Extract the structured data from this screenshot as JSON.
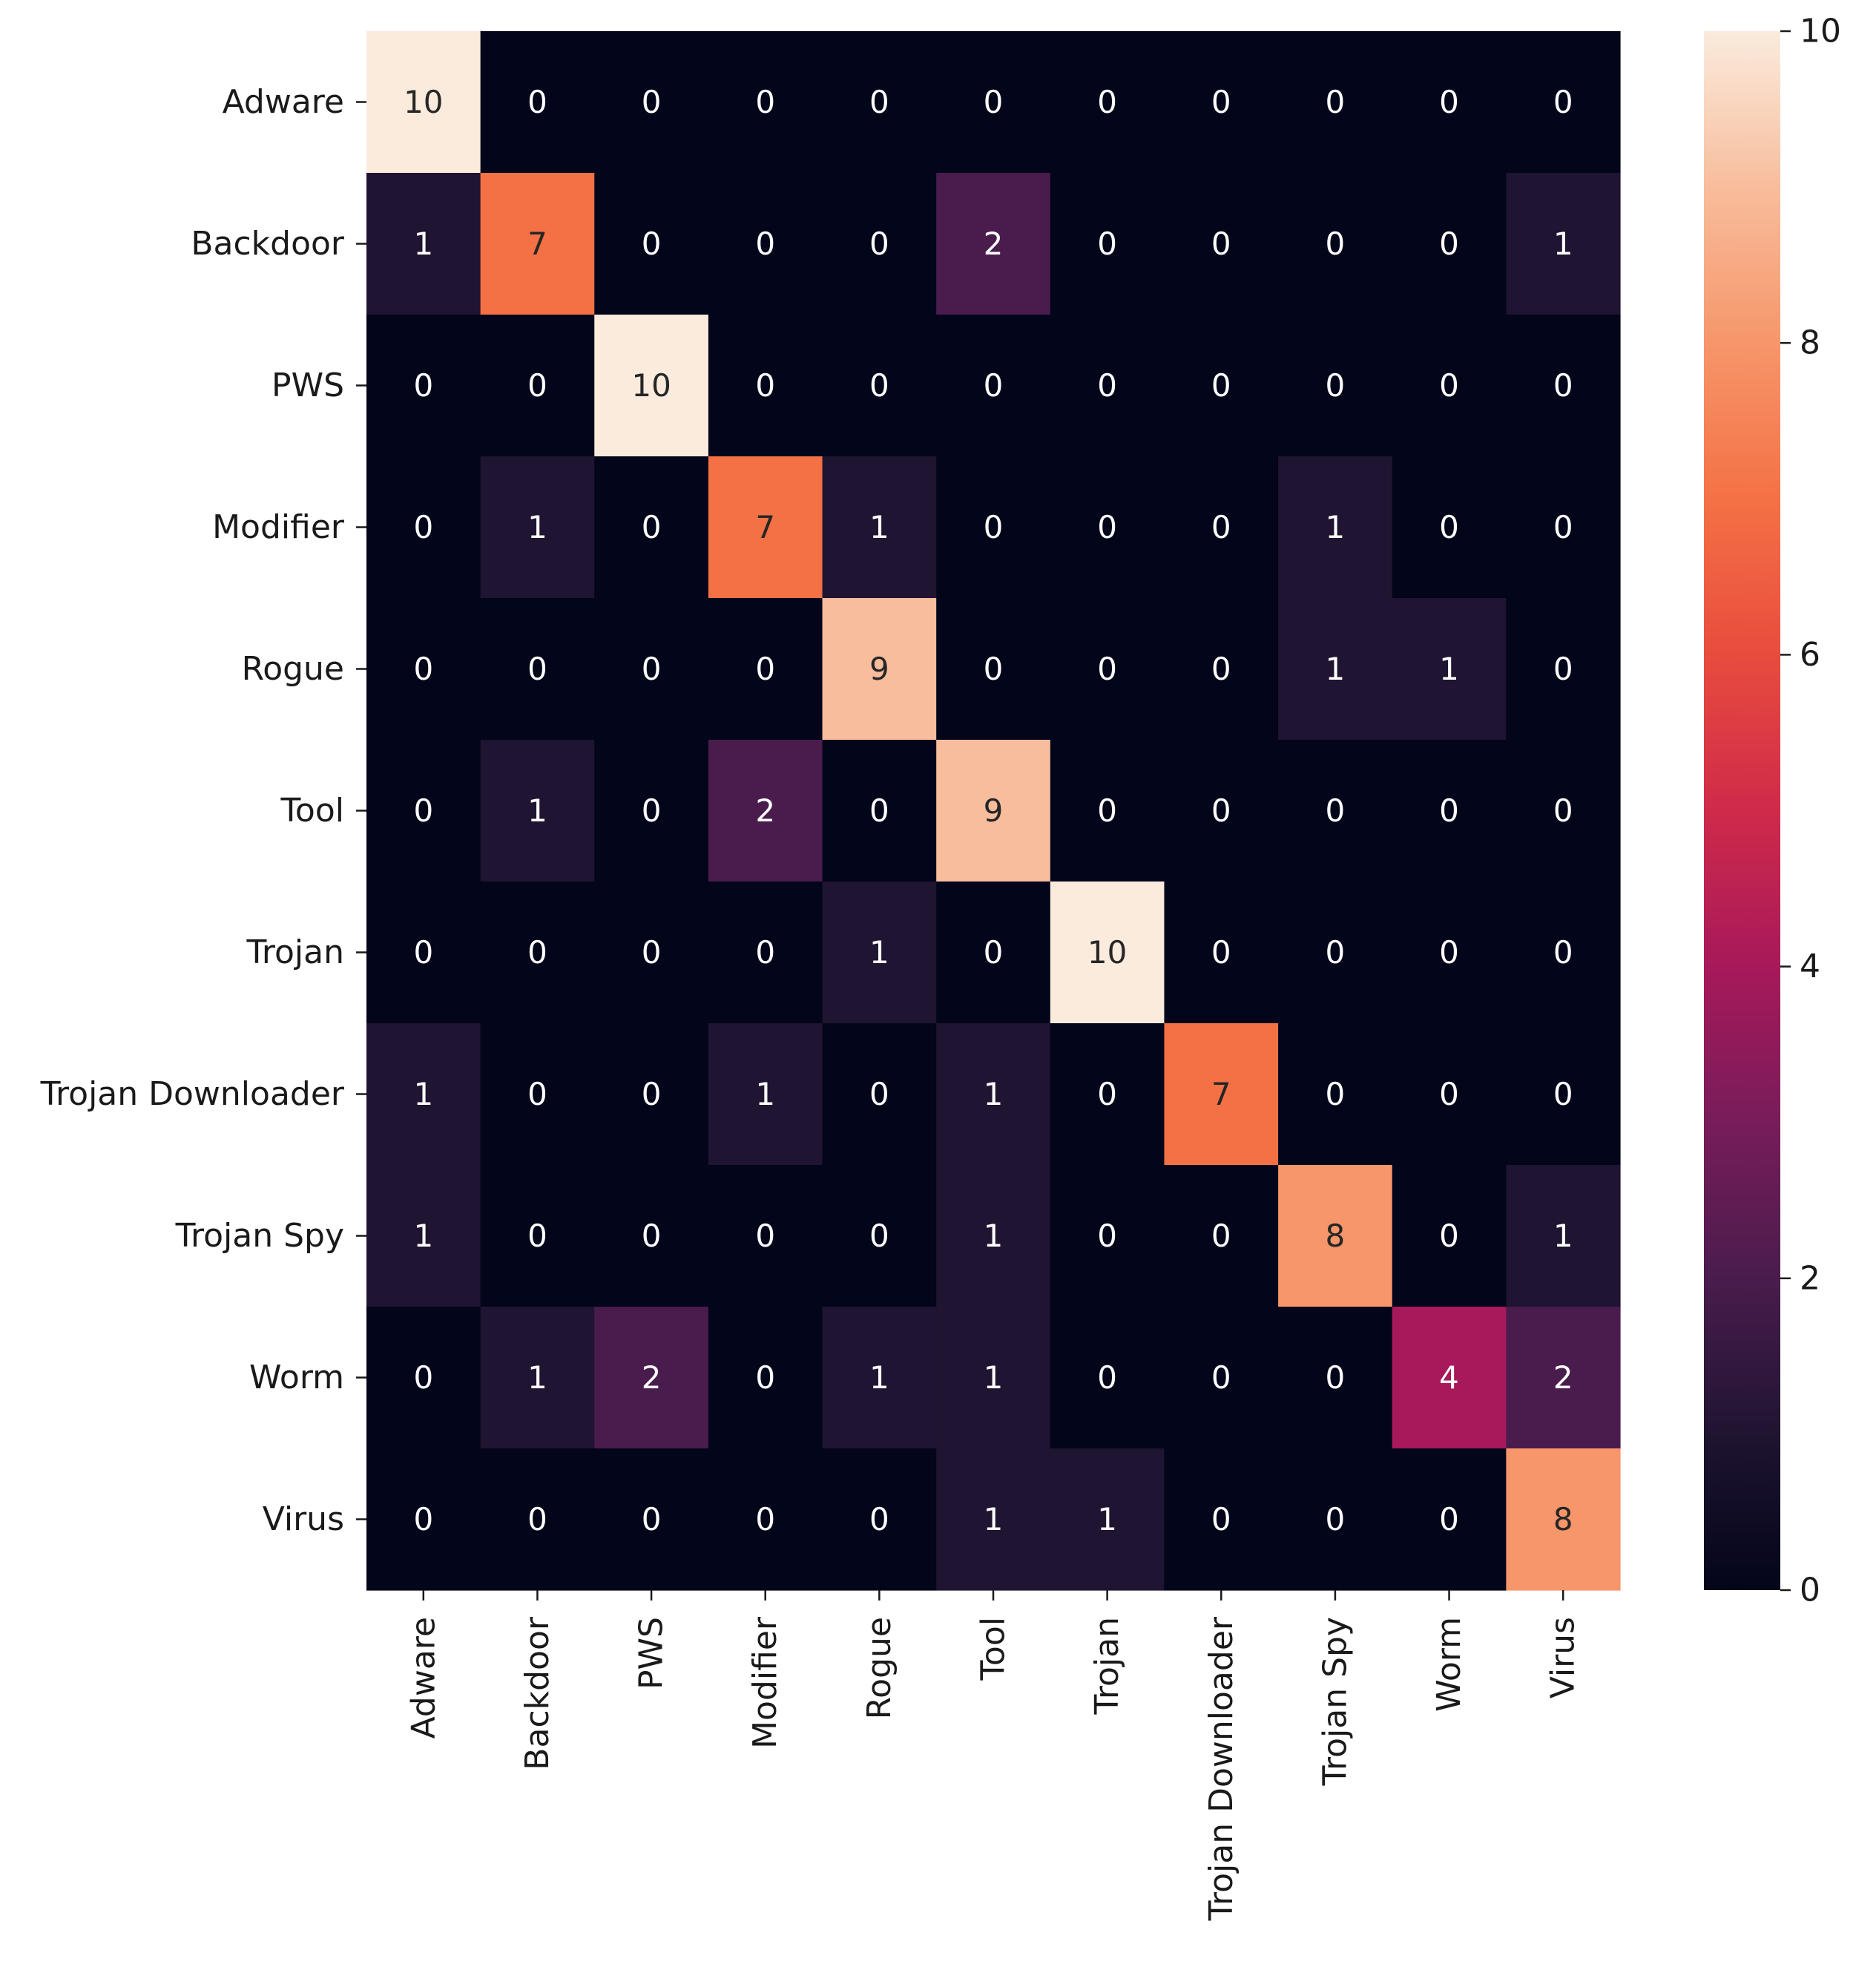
{
  "chart_data": {
    "type": "heatmap",
    "title": "",
    "xlabel": "",
    "ylabel": "",
    "row_labels": [
      "Adware",
      "Backdoor",
      "PWS",
      "Modifier",
      "Rogue",
      "Tool",
      "Trojan",
      "Trojan Downloader",
      "Trojan Spy",
      "Worm",
      "Virus"
    ],
    "col_labels": [
      "Adware",
      "Backdoor",
      "PWS",
      "Modifier",
      "Rogue",
      "Tool",
      "Trojan",
      "Trojan Downloader",
      "Trojan Spy",
      "Worm",
      "Virus"
    ],
    "values": [
      [
        10,
        0,
        0,
        0,
        0,
        0,
        0,
        0,
        0,
        0,
        0
      ],
      [
        1,
        7,
        0,
        0,
        0,
        2,
        0,
        0,
        0,
        0,
        1
      ],
      [
        0,
        0,
        10,
        0,
        0,
        0,
        0,
        0,
        0,
        0,
        0
      ],
      [
        0,
        1,
        0,
        7,
        1,
        0,
        0,
        0,
        1,
        0,
        0
      ],
      [
        0,
        0,
        0,
        0,
        9,
        0,
        0,
        0,
        1,
        1,
        0
      ],
      [
        0,
        1,
        0,
        2,
        0,
        9,
        0,
        0,
        0,
        0,
        0
      ],
      [
        0,
        0,
        0,
        0,
        1,
        0,
        10,
        0,
        0,
        0,
        0
      ],
      [
        1,
        0,
        0,
        1,
        0,
        1,
        0,
        7,
        0,
        0,
        0
      ],
      [
        1,
        0,
        0,
        0,
        0,
        1,
        0,
        0,
        8,
        0,
        1
      ],
      [
        0,
        1,
        2,
        0,
        1,
        1,
        0,
        0,
        0,
        4,
        2
      ],
      [
        0,
        0,
        0,
        0,
        0,
        1,
        1,
        0,
        0,
        0,
        8
      ]
    ],
    "colorbar": {
      "vmin": 0,
      "vmax": 10,
      "ticks": [
        0,
        2,
        4,
        6,
        8,
        10
      ],
      "colormap": "rocket"
    },
    "grid": false
  }
}
